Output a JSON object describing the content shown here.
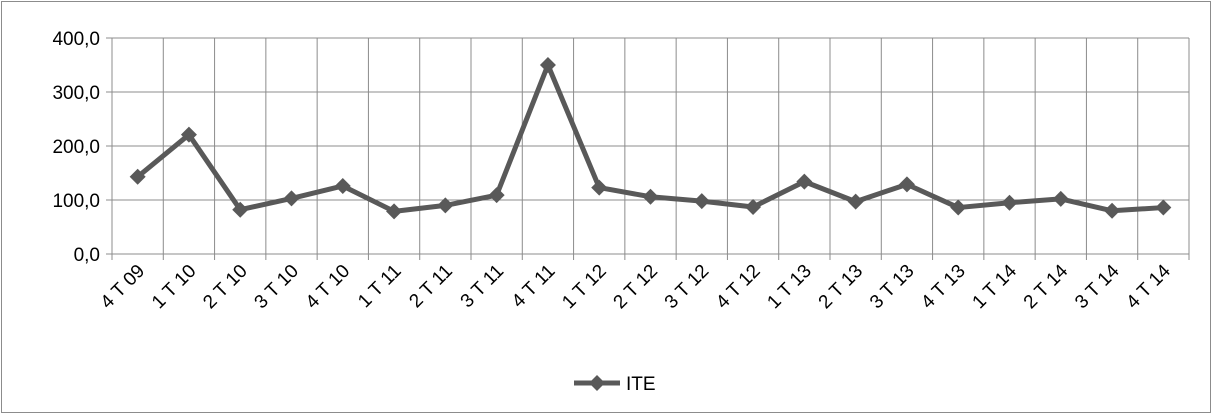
{
  "chart_data": {
    "type": "line",
    "title": "",
    "xlabel": "",
    "ylabel": "",
    "ylim": [
      0,
      400
    ],
    "yticks": [
      "0,0",
      "100,0",
      "200,0",
      "300,0",
      "400,0"
    ],
    "ytick_values": [
      0,
      100,
      200,
      300,
      400
    ],
    "grid": true,
    "legend_position": "bottom",
    "categories": [
      "4 T 09",
      "1 T 10",
      "2 T 10",
      "3 T 10",
      "4 T 10",
      "1 T 11",
      "2 T 11",
      "3 T 11",
      "4 T 11",
      "1 T 12",
      "2 T 12",
      "3 T 12",
      "4 T 12",
      "1 T 13",
      "2 T 13",
      "3 T 13",
      "4 T 13",
      "1 T 14",
      "2 T 14",
      "3 T 14",
      "4 T 14"
    ],
    "series": [
      {
        "name": "ITE",
        "color": "#595959",
        "marker": "diamond",
        "values": [
          143,
          221,
          82,
          103,
          126,
          79,
          90,
          109,
          350,
          123,
          106,
          98,
          87,
          134,
          97,
          129,
          86,
          95,
          102,
          80,
          86
        ]
      }
    ]
  }
}
